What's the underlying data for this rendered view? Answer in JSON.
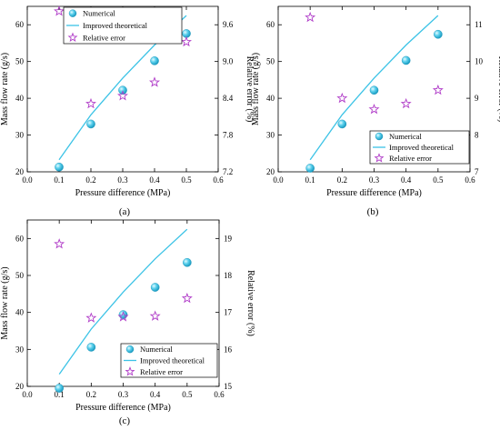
{
  "colors": {
    "numerical": "#3cc3e6",
    "theoretical": "#3cc3e6",
    "error": "#b03cc8",
    "axis": "#000000"
  },
  "chart_data": [
    {
      "type": "scatter",
      "panel_label": "(a)",
      "xlabel": "Pressure difference (MPa)",
      "ylabel": "Mass flow rate (g/s)",
      "ylabel_right": "Relative error (%)",
      "xlim": [
        0.0,
        0.6
      ],
      "ylim": [
        20,
        65
      ],
      "ylim_right": [
        7.2,
        9.9
      ],
      "xticks": [
        "0.0",
        "0.1",
        "0.2",
        "0.3",
        "0.4",
        "0.5",
        "0.6"
      ],
      "yticks": [
        "20",
        "30",
        "40",
        "50",
        "60"
      ],
      "yticks_right": [
        "7.2",
        "7.8",
        "8.4",
        "9.0",
        "9.6"
      ],
      "legend_position": "top-center",
      "series": [
        {
          "name": "Numerical",
          "kind": "marker",
          "axis": "left",
          "x": [
            0.1,
            0.2,
            0.3,
            0.4,
            0.5
          ],
          "y": [
            21.3,
            33.0,
            42.2,
            50.2,
            57.6
          ]
        },
        {
          "name": "Improved theoretical",
          "kind": "line",
          "axis": "left",
          "x": [
            0.1,
            0.2,
            0.3,
            0.4,
            0.5
          ],
          "y": [
            23.3,
            35.5,
            45.5,
            54.5,
            62.5
          ]
        },
        {
          "name": "Relative error",
          "kind": "star",
          "axis": "right",
          "x": [
            0.1,
            0.2,
            0.3,
            0.4,
            0.5
          ],
          "y": [
            9.82,
            8.31,
            8.44,
            8.66,
            9.32
          ]
        }
      ]
    },
    {
      "type": "scatter",
      "panel_label": "(b)",
      "xlabel": "Pressure difference (MPa)",
      "ylabel": "Mass flow rate (g/s)",
      "ylabel_right": "Relative error (%)",
      "xlim": [
        0.0,
        0.6
      ],
      "ylim": [
        20,
        65
      ],
      "ylim_right": [
        7,
        11.5
      ],
      "xticks": [
        "0.0",
        "0.1",
        "0.2",
        "0.3",
        "0.4",
        "0.5",
        "0.6"
      ],
      "yticks": [
        "20",
        "30",
        "40",
        "50",
        "60"
      ],
      "yticks_right": [
        "7",
        "8",
        "9",
        "10",
        "11"
      ],
      "legend_position": "bottom-right",
      "series": [
        {
          "name": "Numerical",
          "kind": "marker",
          "axis": "left",
          "x": [
            0.1,
            0.2,
            0.3,
            0.4,
            0.5
          ],
          "y": [
            21.0,
            33.0,
            42.2,
            50.3,
            57.4
          ]
        },
        {
          "name": "Improved theoretical",
          "kind": "line",
          "axis": "left",
          "x": [
            0.1,
            0.2,
            0.3,
            0.4,
            0.5
          ],
          "y": [
            23.3,
            35.5,
            45.5,
            54.5,
            62.5
          ]
        },
        {
          "name": "Relative error",
          "kind": "star",
          "axis": "right",
          "x": [
            0.1,
            0.2,
            0.3,
            0.4,
            0.5
          ],
          "y": [
            11.2,
            9.0,
            8.7,
            8.85,
            9.22
          ]
        }
      ]
    },
    {
      "type": "scatter",
      "panel_label": "(c)",
      "xlabel": "Pressure difference (MPa)",
      "ylabel": "Mass flow rate (g/s)",
      "ylabel_right": "Relative error (%)",
      "xlim": [
        0.0,
        0.6
      ],
      "ylim": [
        20,
        65
      ],
      "ylim_right": [
        15,
        19.5
      ],
      "xticks": [
        "0.0",
        "0.1",
        "0.2",
        "0.3",
        "0.4",
        "0.5",
        "0.6"
      ],
      "yticks": [
        "20",
        "30",
        "40",
        "50",
        "60"
      ],
      "yticks_right": [
        "15",
        "16",
        "17",
        "18",
        "19"
      ],
      "legend_position": "bottom-right",
      "series": [
        {
          "name": "Numerical",
          "kind": "marker",
          "axis": "left",
          "x": [
            0.1,
            0.2,
            0.3,
            0.4,
            0.5
          ],
          "y": [
            19.5,
            30.6,
            39.4,
            46.8,
            53.5
          ]
        },
        {
          "name": "Improved theoretical",
          "kind": "line",
          "axis": "left",
          "x": [
            0.1,
            0.2,
            0.3,
            0.4,
            0.5
          ],
          "y": [
            23.3,
            35.5,
            45.5,
            54.5,
            62.5
          ]
        },
        {
          "name": "Relative error",
          "kind": "star",
          "axis": "right",
          "x": [
            0.1,
            0.2,
            0.3,
            0.4,
            0.5
          ],
          "y": [
            18.85,
            16.85,
            16.88,
            16.9,
            17.38
          ]
        }
      ]
    }
  ]
}
